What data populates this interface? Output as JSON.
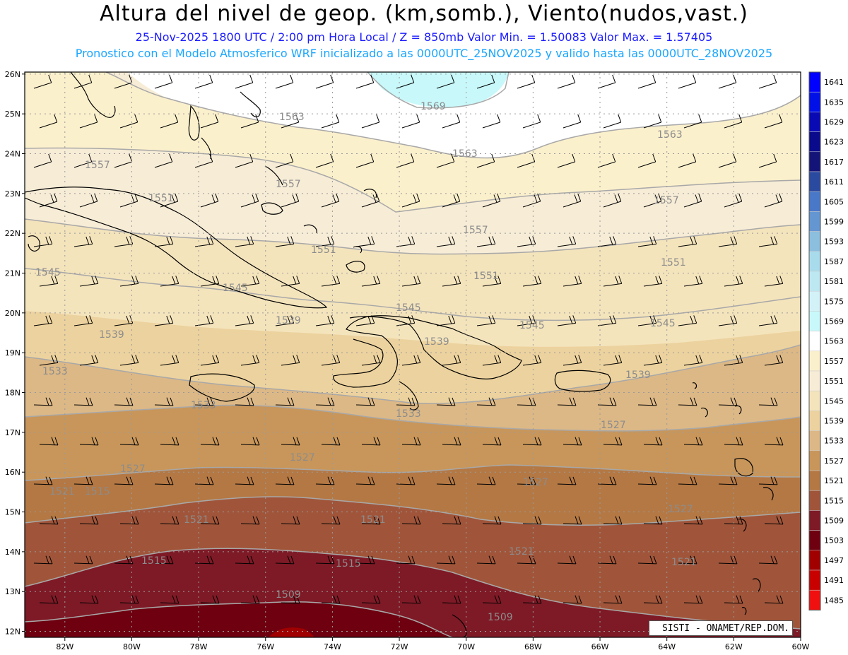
{
  "header": {
    "title": "Altura del nivel de geop. (km,somb.), Viento(nudos,vast.)",
    "subtitle": "25-Nov-2025  1800 UTC / 2:00 pm Hora Local / Z = 850mb     Valor Min. = 1.50083  Valor Max. = 1.57405",
    "model_line": "Pronostico con el Modelo Atmosferico WRF inicializado a las 0000UTC_25NOV2025 y valido hasta las  0000UTC_28NOV2025"
  },
  "map": {
    "lon_labels": [
      "82W",
      "80W",
      "78W",
      "76W",
      "74W",
      "72W",
      "70W",
      "68W",
      "66W",
      "64W",
      "62W",
      "60W"
    ],
    "lat_labels": [
      "26N",
      "25N",
      "24N",
      "23N",
      "22N",
      "21N",
      "20N",
      "19N",
      "18N",
      "17N",
      "16N",
      "15N",
      "14N",
      "13N",
      "12N"
    ],
    "lon_values": [
      -82,
      -80,
      -78,
      -76,
      -74,
      -72,
      -70,
      -68,
      -66,
      -64,
      -62,
      -60
    ],
    "lat_values": [
      26,
      25,
      24,
      23,
      22,
      21,
      20,
      19,
      18,
      17,
      16,
      15,
      14,
      13,
      12
    ],
    "contour_labels": [
      "1569",
      "1563",
      "1563",
      "1563",
      "1557",
      "1557",
      "1557",
      "1557",
      "1551",
      "1551",
      "1551",
      "1551",
      "1545",
      "1545",
      "1545",
      "1545",
      "1545",
      "1539",
      "1539",
      "1539",
      "1539",
      "1533",
      "1533",
      "1533",
      "1527",
      "1527",
      "1527",
      "1527",
      "1527",
      "1521",
      "1521",
      "1521",
      "1521",
      "1521",
      "1515",
      "1515",
      "1515",
      "1509",
      "1509"
    ],
    "credit": "SISTI - ONAMET/REP.DOM."
  },
  "colorbar": {
    "levels": [
      "1641",
      "1635",
      "1629",
      "1623",
      "1617",
      "1611",
      "1605",
      "1599",
      "1593",
      "1587",
      "1581",
      "1575",
      "1569",
      "1563",
      "1557",
      "1551",
      "1545",
      "1539",
      "1533",
      "1527",
      "1521",
      "1515",
      "1509",
      "1503",
      "1497",
      "1491",
      "1485"
    ],
    "colors": [
      "#0000ff",
      "#0010e6",
      "#0a0ab4",
      "#0a0a8c",
      "#141478",
      "#2a4aa0",
      "#4a78c8",
      "#6496d2",
      "#8cbede",
      "#a8dcec",
      "#bde8f2",
      "#d2f2f8",
      "#c8f8fa",
      "#ffffff",
      "#fbf0cc",
      "#f7ecd6",
      "#f4e4bc",
      "#ecd29e",
      "#dcb886",
      "#c8965a",
      "#b47844",
      "#a0553a",
      "#7e1a26",
      "#6e0010",
      "#a00000",
      "#c80000",
      "#f01010"
    ]
  }
}
